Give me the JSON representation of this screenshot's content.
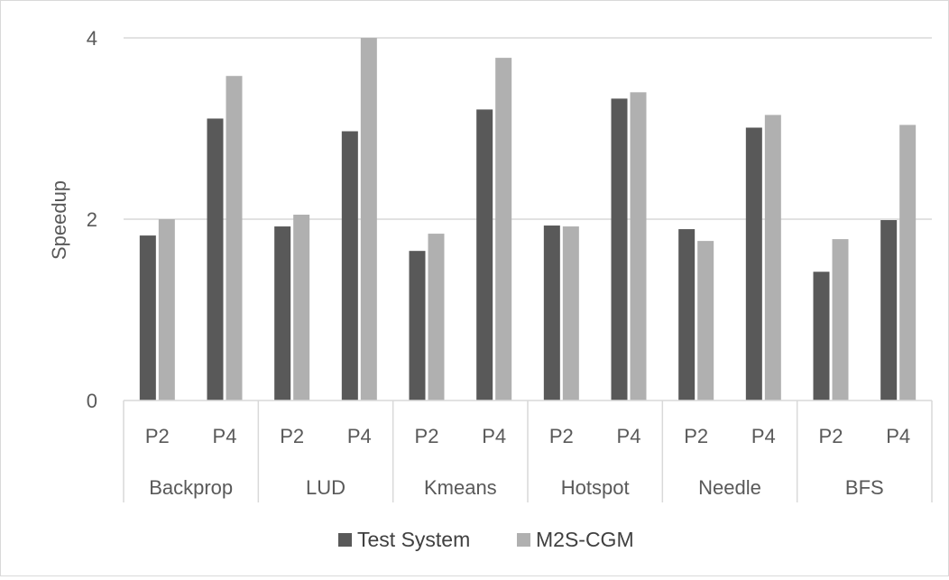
{
  "chart_data": {
    "type": "bar",
    "title": "",
    "xlabel": "",
    "ylabel": "Speedup",
    "ylim": [
      0,
      4
    ],
    "yticks": [
      0,
      2,
      4
    ],
    "grid": true,
    "legend_position": "bottom",
    "groups": [
      "Backprop",
      "LUD",
      "Kmeans",
      "Hotspot",
      "Needle",
      "BFS"
    ],
    "subcategories": [
      "P2",
      "P4"
    ],
    "categories": [
      "Backprop P2",
      "Backprop P4",
      "LUD P2",
      "LUD P4",
      "Kmeans P2",
      "Kmeans P4",
      "Hotspot P2",
      "Hotspot P4",
      "Needle P2",
      "Needle P4",
      "BFS P2",
      "BFS P4"
    ],
    "series": [
      {
        "name": "Test System",
        "color": "#595959",
        "values": [
          1.82,
          3.11,
          1.92,
          2.97,
          1.65,
          3.21,
          1.93,
          3.33,
          1.89,
          3.01,
          1.42,
          1.99
        ]
      },
      {
        "name": "M2S-CGM",
        "color": "#b0b0b0",
        "values": [
          2.0,
          3.58,
          2.05,
          4.0,
          1.84,
          3.78,
          1.92,
          3.4,
          1.76,
          3.15,
          1.78,
          3.04
        ]
      }
    ]
  }
}
